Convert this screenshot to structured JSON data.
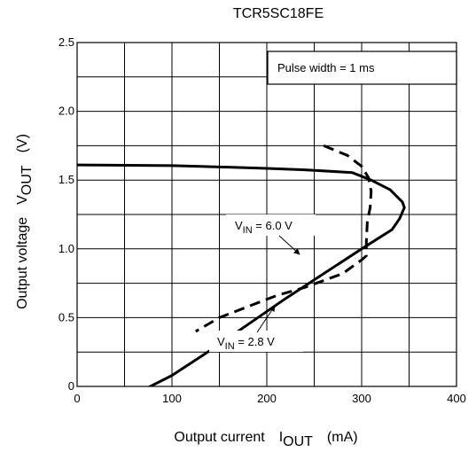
{
  "chart_data": {
    "type": "line",
    "title": "TCR5SC18FE",
    "xlabel": {
      "prefix": "Output current",
      "symbol": "I",
      "sub": "OUT",
      "unit": "(mA)"
    },
    "ylabel": {
      "prefix": "Output voltage",
      "symbol": "V",
      "sub": "OUT",
      "unit": "(V)"
    },
    "xlim": [
      0,
      400
    ],
    "ylim": [
      0,
      2.5
    ],
    "xticks": [
      0,
      100,
      200,
      300,
      400
    ],
    "yticks": [
      0,
      0.5,
      1.0,
      1.5,
      2.0,
      2.5
    ],
    "xtick_labels": [
      "0",
      "100",
      "200",
      "300",
      "400"
    ],
    "ytick_labels": [
      "0",
      "0.5",
      "1.0",
      "1.5",
      "2.0",
      "2.5"
    ],
    "grid": true,
    "note": "Pulse width = 1 ms",
    "series": [
      {
        "name": "VIN = 6.0 V",
        "style": "solid",
        "color": "#000000",
        "label": {
          "symbol": "V",
          "sub": "IN",
          "text": " = 6.0 V"
        },
        "points": [
          [
            0,
            1.61
          ],
          [
            100,
            1.605
          ],
          [
            130,
            1.6
          ],
          [
            200,
            1.585
          ],
          [
            240,
            1.575
          ],
          [
            290,
            1.555
          ],
          [
            310,
            1.5
          ],
          [
            330,
            1.43
          ],
          [
            343,
            1.34
          ],
          [
            345,
            1.3
          ],
          [
            340,
            1.22
          ],
          [
            332,
            1.14
          ],
          [
            300,
            1.0
          ],
          [
            260,
            0.82
          ],
          [
            220,
            0.64
          ],
          [
            180,
            0.45
          ],
          [
            140,
            0.26
          ],
          [
            100,
            0.08
          ],
          [
            20,
            -0.2
          ]
        ]
      },
      {
        "name": "VIN = 2.8 V",
        "style": "dashed",
        "color": "#000000",
        "label": {
          "symbol": "V",
          "sub": "IN",
          "text": " = 2.8 V"
        },
        "points": [
          [
            260,
            1.75
          ],
          [
            285,
            1.68
          ],
          [
            300,
            1.6
          ],
          [
            307,
            1.52
          ],
          [
            310,
            1.42
          ],
          [
            309,
            1.3
          ],
          [
            306,
            1.2
          ],
          [
            305,
            1.05
          ],
          [
            305,
            0.95
          ],
          [
            300,
            0.92
          ],
          [
            280,
            0.82
          ],
          [
            240,
            0.72
          ],
          [
            210,
            0.66
          ],
          [
            180,
            0.58
          ],
          [
            150,
            0.5
          ],
          [
            125,
            0.4
          ]
        ]
      }
    ]
  }
}
